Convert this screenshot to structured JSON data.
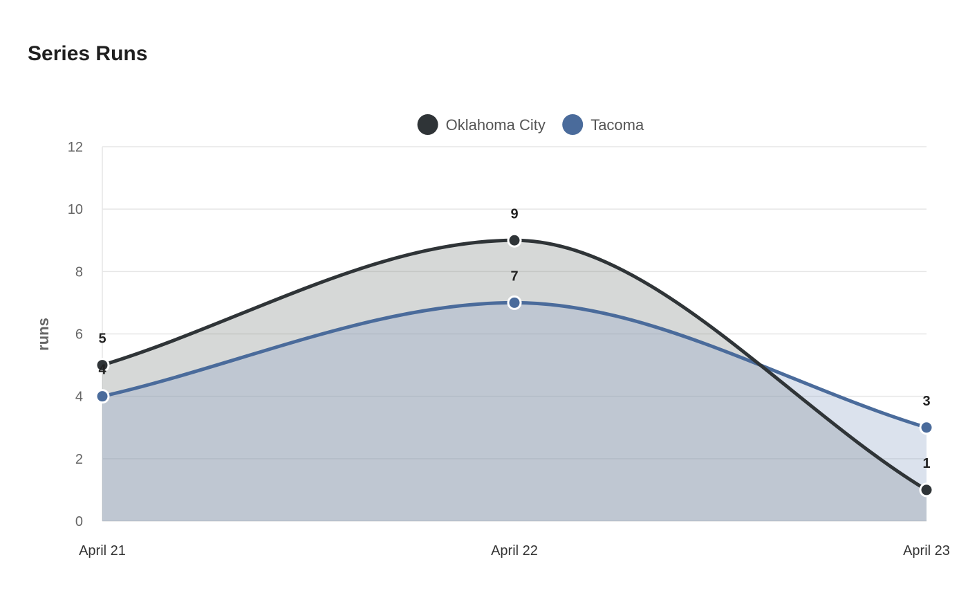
{
  "chart_data": {
    "type": "area",
    "title": "Series Runs",
    "xlabel": "",
    "ylabel": "runs",
    "categories": [
      "April 21",
      "April 22",
      "April 23"
    ],
    "ylim": [
      0,
      12
    ],
    "yticks": [
      0,
      2,
      4,
      6,
      8,
      10,
      12
    ],
    "grid": true,
    "legend_position": "top-center",
    "curve": "smooth",
    "series": [
      {
        "name": "Oklahoma City",
        "values": [
          5,
          9,
          1
        ],
        "color": "#2f3437",
        "fill": "#7f8584"
      },
      {
        "name": "Tacoma",
        "values": [
          4,
          7,
          3
        ],
        "color": "#4a6b9b",
        "fill": "#8fa6c8"
      }
    ]
  }
}
